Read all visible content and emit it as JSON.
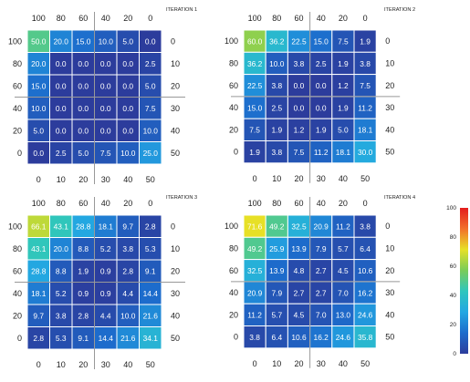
{
  "chart_data": [
    {
      "type": "heatmap",
      "title": "ITERATION 1",
      "x_top": [
        "100",
        "80",
        "60",
        "40",
        "20",
        "0"
      ],
      "x_bottom": [
        "0",
        "10",
        "20",
        "30",
        "40",
        "50"
      ],
      "y_left": [
        "100",
        "80",
        "60",
        "40",
        "20",
        "0"
      ],
      "y_right": [
        "0",
        "10",
        "20",
        "30",
        "40",
        "50"
      ],
      "values": [
        [
          "50.0",
          "20.0",
          "15.0",
          "10.0",
          "5.0",
          "0.0"
        ],
        [
          "20.0",
          "0.0",
          "0.0",
          "0.0",
          "0.0",
          "2.5"
        ],
        [
          "15.0",
          "0.0",
          "0.0",
          "0.0",
          "0.0",
          "5.0"
        ],
        [
          "10.0",
          "0.0",
          "0.0",
          "0.0",
          "0.0",
          "7.5"
        ],
        [
          "5.0",
          "0.0",
          "0.0",
          "0.0",
          "0.0",
          "10.0"
        ],
        [
          "0.0",
          "2.5",
          "5.0",
          "7.5",
          "10.0",
          "25.0"
        ]
      ]
    },
    {
      "type": "heatmap",
      "title": "ITERATION 2",
      "x_top": [
        "100",
        "80",
        "60",
        "40",
        "20",
        "0"
      ],
      "x_bottom": [
        "0",
        "10",
        "20",
        "30",
        "40",
        "50"
      ],
      "y_left": [
        "100",
        "80",
        "60",
        "40",
        "20",
        "0"
      ],
      "y_right": [
        "0",
        "10",
        "20",
        "30",
        "40",
        "50"
      ],
      "values": [
        [
          "60.0",
          "36.2",
          "22.5",
          "15.0",
          "7.5",
          "1.9"
        ],
        [
          "36.2",
          "10.0",
          "3.8",
          "2.5",
          "1.9",
          "3.8"
        ],
        [
          "22.5",
          "3.8",
          "0.0",
          "0.0",
          "1.2",
          "7.5"
        ],
        [
          "15.0",
          "2.5",
          "0.0",
          "0.0",
          "1.9",
          "11.2"
        ],
        [
          "7.5",
          "1.9",
          "1.2",
          "1.9",
          "5.0",
          "18.1"
        ],
        [
          "1.9",
          "3.8",
          "7.5",
          "11.2",
          "18.1",
          "30.0"
        ]
      ]
    },
    {
      "type": "heatmap",
      "title": "ITERATION 3",
      "x_top": [
        "100",
        "80",
        "60",
        "40",
        "20",
        "0"
      ],
      "x_bottom": [
        "0",
        "10",
        "20",
        "30",
        "40",
        "50"
      ],
      "y_left": [
        "100",
        "80",
        "60",
        "40",
        "20",
        "0"
      ],
      "y_right": [
        "0",
        "10",
        "20",
        "30",
        "40",
        "50"
      ],
      "values": [
        [
          "66.1",
          "43.1",
          "28.8",
          "18.1",
          "9.7",
          "2.8"
        ],
        [
          "43.1",
          "20.0",
          "8.8",
          "5.2",
          "3.8",
          "5.3"
        ],
        [
          "28.8",
          "8.8",
          "1.9",
          "0.9",
          "2.8",
          "9.1"
        ],
        [
          "18.1",
          "5.2",
          "0.9",
          "0.9",
          "4.4",
          "14.4"
        ],
        [
          "9.7",
          "3.8",
          "2.8",
          "4.4",
          "10.0",
          "21.6"
        ],
        [
          "2.8",
          "5.3",
          "9.1",
          "14.4",
          "21.6",
          "34.1"
        ]
      ]
    },
    {
      "type": "heatmap",
      "title": "ITERATION 4",
      "x_top": [
        "100",
        "80",
        "60",
        "40",
        "20",
        "0"
      ],
      "x_bottom": [
        "0",
        "10",
        "20",
        "30",
        "40",
        "50"
      ],
      "y_left": [
        "100",
        "80",
        "60",
        "40",
        "20",
        "0"
      ],
      "y_right": [
        "0",
        "10",
        "20",
        "30",
        "40",
        "50"
      ],
      "values": [
        [
          "71.6",
          "49.2",
          "32.5",
          "20.9",
          "11.2",
          "3.8"
        ],
        [
          "49.2",
          "25.9",
          "13.9",
          "7.9",
          "5.7",
          "6.4"
        ],
        [
          "32.5",
          "13.9",
          "4.8",
          "2.7",
          "4.5",
          "10.6"
        ],
        [
          "20.9",
          "7.9",
          "2.7",
          "2.7",
          "7.0",
          "16.2"
        ],
        [
          "11.2",
          "5.7",
          "4.5",
          "7.0",
          "13.0",
          "24.6"
        ],
        [
          "3.8",
          "6.4",
          "10.6",
          "16.2",
          "24.6",
          "35.8"
        ]
      ]
    }
  ],
  "colorbar": {
    "min": 0,
    "max": 100,
    "ticks": [
      "100",
      "80",
      "60",
      "40",
      "20",
      "0"
    ],
    "colors": [
      "#2c3c9c",
      "#1d6ccc",
      "#23a7e2",
      "#2fc6bd",
      "#79cc58",
      "#e7e126",
      "#f2702b",
      "#e31d1d"
    ]
  },
  "cell_text_color": "#ffffff",
  "label_color": "#222222",
  "divider_color": "#999999"
}
